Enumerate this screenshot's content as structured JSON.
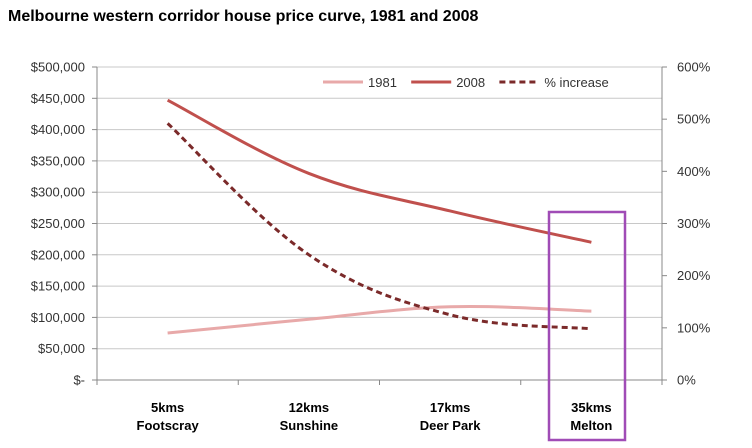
{
  "chart_data": {
    "type": "line",
    "title": "Melbourne western corridor house price curve, 1981 and 2008",
    "categories": [
      "5kms\nFootscray",
      "12kms\nSunshine",
      "17kms\nDeer Park",
      "35kms\nMelton"
    ],
    "y_left": {
      "ticks": [
        "$-",
        "$50,000",
        "$100,000",
        "$150,000",
        "$200,000",
        "$250,000",
        "$300,000",
        "$350,000",
        "$400,000",
        "$450,000",
        "$500,000"
      ],
      "ylim": [
        0,
        500000
      ]
    },
    "y_right": {
      "ticks": [
        "0%",
        "100%",
        "200%",
        "300%",
        "400%",
        "500%",
        "600%"
      ],
      "ylim": [
        0,
        600
      ]
    },
    "series": [
      {
        "name": "1981",
        "axis": "left",
        "color": "#e8a9a9",
        "dash": "solid",
        "values": [
          75000,
          97000,
          117000,
          110000
        ]
      },
      {
        "name": "2008",
        "axis": "left",
        "color": "#c0504d",
        "dash": "solid",
        "values": [
          447000,
          330000,
          270000,
          220000
        ]
      },
      {
        "name": "% increase",
        "axis": "right",
        "color": "#7b2a2a",
        "dash": "dashed",
        "values": [
          492,
          240,
          125,
          98
        ]
      }
    ],
    "highlight": {
      "category_index": 3,
      "color": "#a04cb6"
    },
    "legend_position": "top-right",
    "grid": true
  }
}
